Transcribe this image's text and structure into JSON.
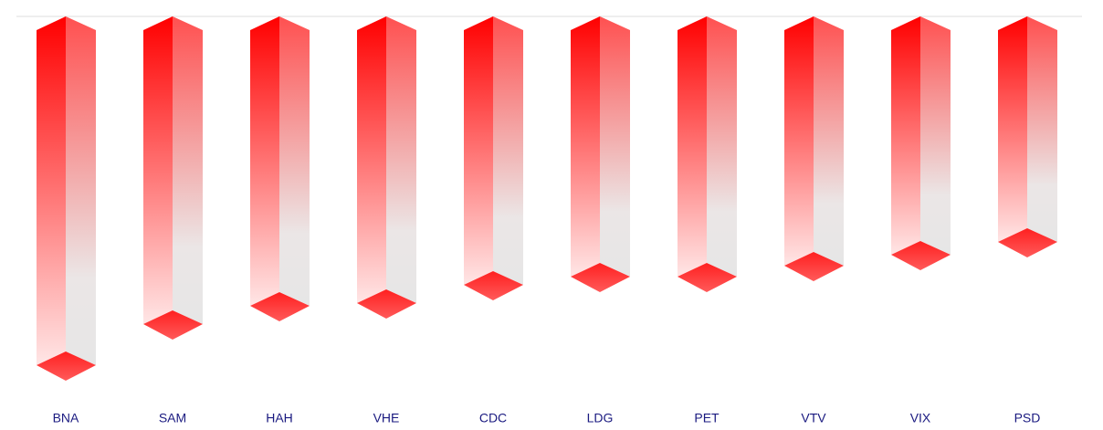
{
  "chart_data": {
    "type": "bar",
    "categories": [
      "BNA",
      "SAM",
      "HAH",
      "VHE",
      "CDC",
      "LDG",
      "PET",
      "VTV",
      "VIX",
      "PSD"
    ],
    "values": [
      -38.2,
      -33.7,
      -31.7,
      -31.4,
      -29.4,
      -28.5,
      -28.5,
      -27.3,
      -26.1,
      -24.7
    ],
    "color": "#ff0000",
    "ylim": [
      -40,
      0
    ]
  }
}
